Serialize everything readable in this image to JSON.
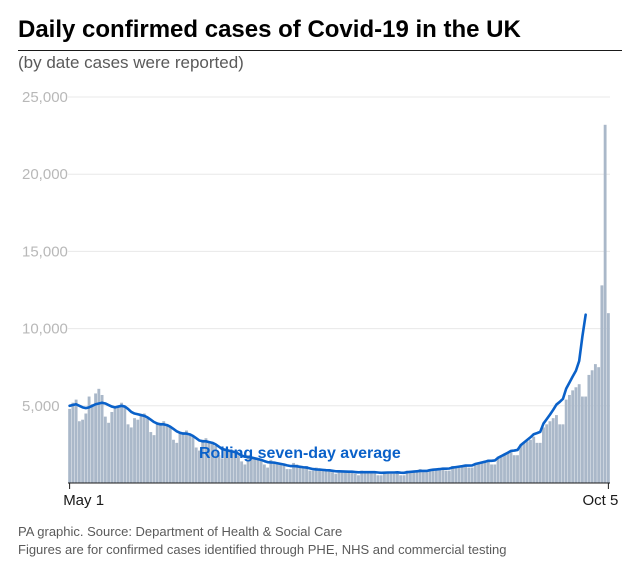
{
  "title": "Daily confirmed cases of Covid-19 in the UK",
  "subtitle": "(by date cases were reported)",
  "footer_line1": "PA graphic. Source: Department of Health & Social Care",
  "footer_line2": "Figures are for confirmed cases identified through PHE, NHS and commercial testing",
  "chart": {
    "type": "bar+line",
    "ylim": [
      0,
      25000
    ],
    "yticks": [
      5000,
      10000,
      15000,
      20000,
      25000
    ],
    "ytick_labels": [
      "5,000",
      "10,000",
      "15,000",
      "20,000",
      "25,000"
    ],
    "xtick_labels": [
      "May 1",
      "Oct 5"
    ],
    "grid_color": "#e8e8e8",
    "axis_color": "#1a1a1a",
    "bar_color": "#aab8c9",
    "line_color": "#0a61c9",
    "line_width": 2.6,
    "rolling_label": "Rolling seven-day average",
    "background_color": "#ffffff",
    "title_fontsize": 24,
    "subtitle_fontsize": 17,
    "tick_fontsize": 15,
    "bars": [
      4800,
      5200,
      5400,
      4000,
      4100,
      4500,
      5600,
      5100,
      5800,
      6100,
      5700,
      4300,
      3900,
      4600,
      4900,
      5000,
      5200,
      5000,
      3800,
      3600,
      4200,
      4100,
      4400,
      4500,
      4200,
      3300,
      3100,
      3800,
      3900,
      4000,
      3800,
      3600,
      2800,
      2600,
      3200,
      3300,
      3400,
      3200,
      3000,
      2300,
      2100,
      2800,
      2900,
      2700,
      2600,
      2400,
      1800,
      1600,
      2200,
      2100,
      2000,
      2000,
      1800,
      1400,
      1200,
      1800,
      1700,
      1600,
      1500,
      1500,
      1200,
      1000,
      1500,
      1400,
      1300,
      1200,
      1200,
      900,
      900,
      1300,
      1200,
      1100,
      1000,
      1100,
      800,
      800,
      1000,
      900,
      900,
      800,
      900,
      700,
      600,
      800,
      800,
      700,
      700,
      800,
      600,
      500,
      800,
      700,
      700,
      700,
      700,
      500,
      500,
      700,
      700,
      600,
      600,
      700,
      500,
      500,
      800,
      800,
      800,
      800,
      900,
      700,
      700,
      900,
      900,
      900,
      900,
      1000,
      800,
      800,
      1100,
      1100,
      1100,
      1100,
      1200,
      1000,
      1000,
      1300,
      1300,
      1400,
      1400,
      1500,
      1200,
      1200,
      1700,
      1800,
      1900,
      2000,
      2100,
      1800,
      1800,
      2500,
      2600,
      2700,
      2800,
      3000,
      2600,
      2600,
      3600,
      3800,
      4000,
      4200,
      4400,
      3800,
      3800,
      5400,
      5700,
      6000,
      6200,
      6400,
      5600,
      5600,
      7000,
      7300,
      7700,
      7500,
      12800,
      23200,
      11000
    ],
    "line": [
      5000,
      5050,
      5100,
      5000,
      4900,
      4850,
      4900,
      5000,
      5100,
      5150,
      5200,
      5150,
      5050,
      4950,
      4900,
      4950,
      5000,
      4950,
      4800,
      4600,
      4500,
      4450,
      4400,
      4350,
      4250,
      4100,
      3950,
      3850,
      3800,
      3800,
      3750,
      3650,
      3500,
      3350,
      3250,
      3200,
      3200,
      3150,
      3050,
      2900,
      2750,
      2700,
      2700,
      2650,
      2600,
      2500,
      2350,
      2200,
      2150,
      2100,
      2050,
      2000,
      1900,
      1780,
      1700,
      1680,
      1650,
      1600,
      1550,
      1500,
      1420,
      1350,
      1330,
      1320,
      1280,
      1240,
      1200,
      1140,
      1100,
      1100,
      1080,
      1050,
      1020,
      1000,
      950,
      900,
      880,
      870,
      850,
      830,
      820,
      790,
      760,
      760,
      750,
      740,
      730,
      730,
      710,
      690,
      700,
      700,
      700,
      700,
      700,
      680,
      660,
      670,
      680,
      680,
      680,
      690,
      670,
      660,
      700,
      720,
      740,
      760,
      780,
      780,
      780,
      830,
      860,
      880,
      900,
      930,
      930,
      940,
      1000,
      1030,
      1060,
      1090,
      1130,
      1130,
      1140,
      1230,
      1280,
      1330,
      1380,
      1440,
      1440,
      1460,
      1630,
      1740,
      1850,
      1960,
      2080,
      2100,
      2140,
      2450,
      2620,
      2790,
      2960,
      3160,
      3230,
      3310,
      3850,
      4140,
      4430,
      4740,
      5080,
      5250,
      5450,
      6110,
      6500,
      6900,
      7270,
      7900,
      9500,
      10900
    ]
  }
}
